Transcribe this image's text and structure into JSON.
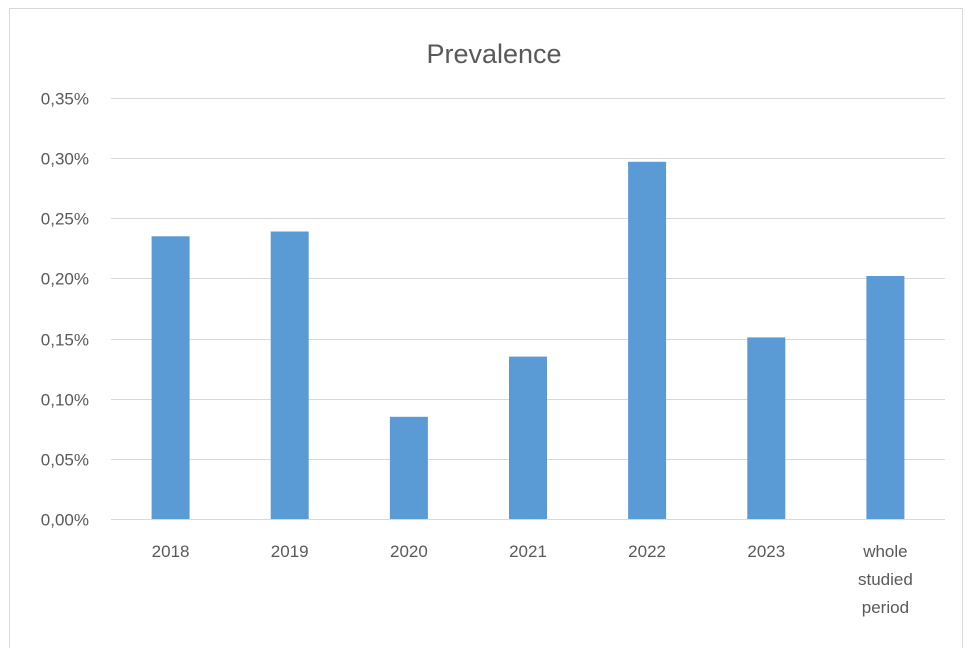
{
  "chart_data": {
    "type": "bar",
    "title": "Prevalence",
    "categories": [
      "2018",
      "2019",
      "2020",
      "2021",
      "2022",
      "2023",
      "whole studied period"
    ],
    "category_lines": [
      [
        "2018"
      ],
      [
        "2019"
      ],
      [
        "2020"
      ],
      [
        "2021"
      ],
      [
        "2022"
      ],
      [
        "2023"
      ],
      [
        "whole",
        "studied",
        "period"
      ]
    ],
    "values": [
      0.235,
      0.239,
      0.085,
      0.135,
      0.297,
      0.151,
      0.202
    ],
    "value_unit": "%",
    "ylim": [
      0,
      0.35
    ],
    "yticks": [
      0,
      0.05,
      0.1,
      0.15,
      0.2,
      0.25,
      0.3,
      0.35
    ],
    "ytick_labels": [
      "0,00%",
      "0,05%",
      "0,10%",
      "0,15%",
      "0,20%",
      "0,25%",
      "0,30%",
      "0,35%"
    ],
    "xlabel": "",
    "ylabel": "",
    "grid": true,
    "legend": "none",
    "colors": {
      "bar": "#5b9bd5",
      "grid": "#d9d9d9",
      "text": "#595959",
      "frame": "#d9d9d9"
    }
  }
}
